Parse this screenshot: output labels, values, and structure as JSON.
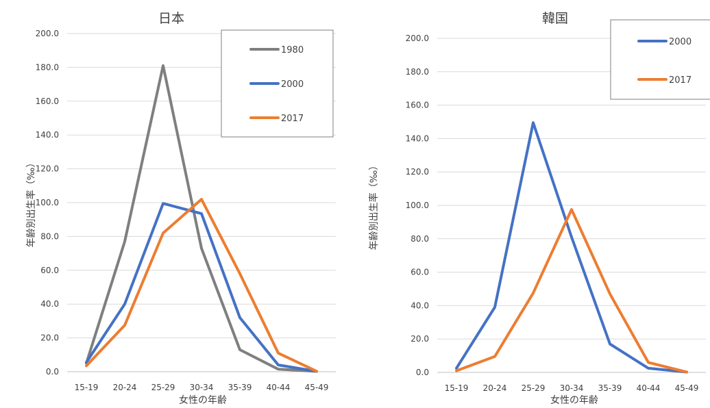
{
  "chart_data": [
    {
      "type": "line",
      "title": "日本",
      "xlabel": "女性の年齢",
      "ylabel": "年齢別出生率（‰）",
      "ylim": [
        0,
        200
      ],
      "yticks": [
        "0.0",
        "20.0",
        "40.0",
        "60.0",
        "80.0",
        "100.0",
        "120.0",
        "140.0",
        "160.0",
        "180.0",
        "200.0"
      ],
      "categories": [
        "15-19",
        "20-24",
        "25-29",
        "30-34",
        "35-39",
        "40-44",
        "45-49"
      ],
      "grid": true,
      "legend_position": "top-right",
      "series": [
        {
          "name": "1980",
          "color": "#7f7f7f",
          "values": [
            5.0,
            77.0,
            181.0,
            73.0,
            13.0,
            1.5,
            0.2
          ]
        },
        {
          "name": "2000",
          "color": "#4472c4",
          "values": [
            5.5,
            40.0,
            99.5,
            93.5,
            32.0,
            4.0,
            0.2
          ]
        },
        {
          "name": "2017",
          "color": "#ed7d31",
          "values": [
            3.5,
            27.5,
            82.0,
            102.0,
            58.0,
            11.0,
            0.3
          ]
        }
      ]
    },
    {
      "type": "line",
      "title": "韓国",
      "xlabel": "女性の年齢",
      "ylabel": "年齢別出生率（‰）",
      "ylim": [
        0,
        200
      ],
      "yticks": [
        "0.0",
        "20.0",
        "40.0",
        "60.0",
        "80.0",
        "100.0",
        "120.0",
        "140.0",
        "160.0",
        "180.0",
        "200.0"
      ],
      "categories": [
        "15-19",
        "20-24",
        "25-29",
        "30-34",
        "35-39",
        "40-44",
        "45-49"
      ],
      "grid": true,
      "legend_position": "top-right",
      "series": [
        {
          "name": "2000",
          "color": "#4472c4",
          "values": [
            2.5,
            39.0,
            149.5,
            81.0,
            17.0,
            2.5,
            0.2
          ]
        },
        {
          "name": "2017",
          "color": "#ed7d31",
          "values": [
            1.0,
            9.5,
            47.5,
            97.5,
            47.0,
            6.0,
            0.2
          ]
        }
      ]
    }
  ]
}
